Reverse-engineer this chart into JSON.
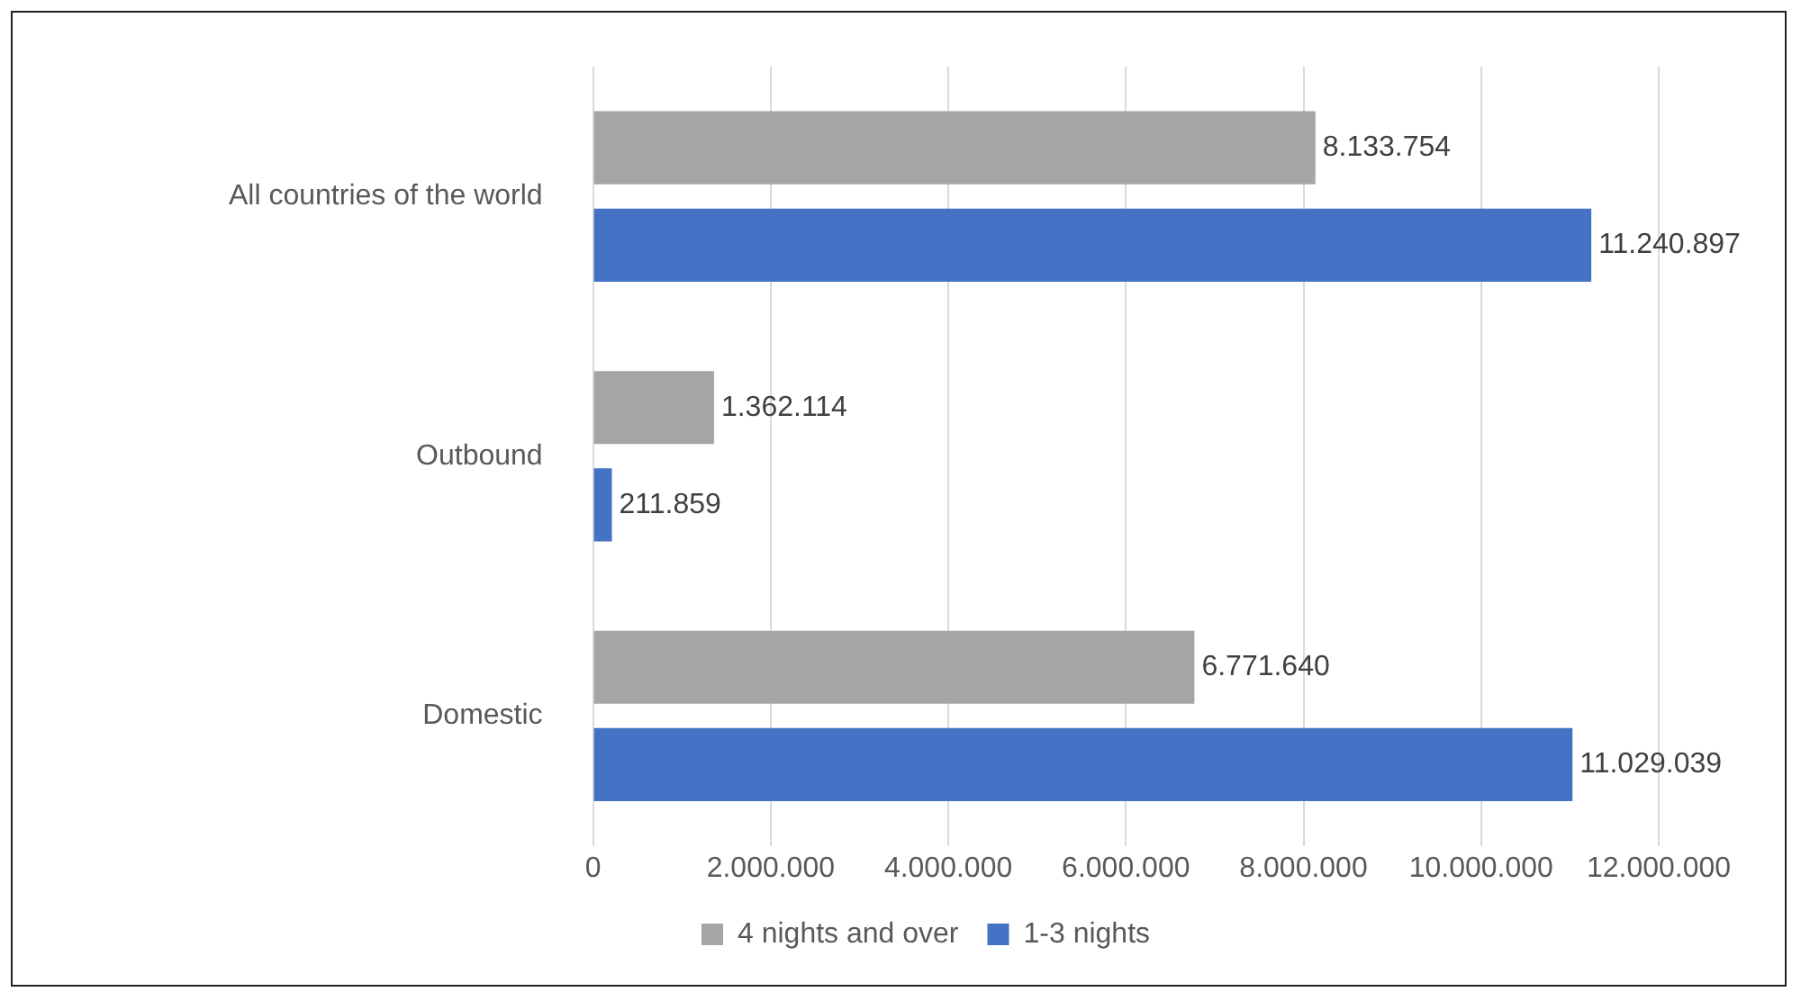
{
  "chart_data": {
    "type": "bar",
    "orientation": "horizontal",
    "categories": [
      "All countries of the world",
      "Outbound",
      "Domestic"
    ],
    "series": [
      {
        "name": "4 nights and over",
        "color": "#a5a5a5",
        "values": [
          8133754,
          1362114,
          6771640
        ],
        "value_labels": [
          "8.133.754",
          "1.362.114",
          "6.771.640"
        ]
      },
      {
        "name": "1-3 nights",
        "color": "#4472c4",
        "values": [
          11240897,
          211859,
          11029039
        ],
        "value_labels": [
          "11.240.897",
          "211.859",
          "11.029.039"
        ]
      }
    ],
    "xlim": [
      0,
      12000000
    ],
    "xticks": [
      0,
      {
        "value": 2000000,
        "label": "2.000.000"
      },
      {
        "value": 4000000,
        "label": "4.000.000"
      },
      {
        "value": 6000000,
        "label": "6.000.000"
      },
      {
        "value": 8000000,
        "label": "8.000.000"
      },
      {
        "value": 10000000,
        "label": "10.000.000"
      },
      {
        "value": 12000000,
        "label": "12.000.000"
      }
    ],
    "grid": "x",
    "legend": "bottom"
  }
}
